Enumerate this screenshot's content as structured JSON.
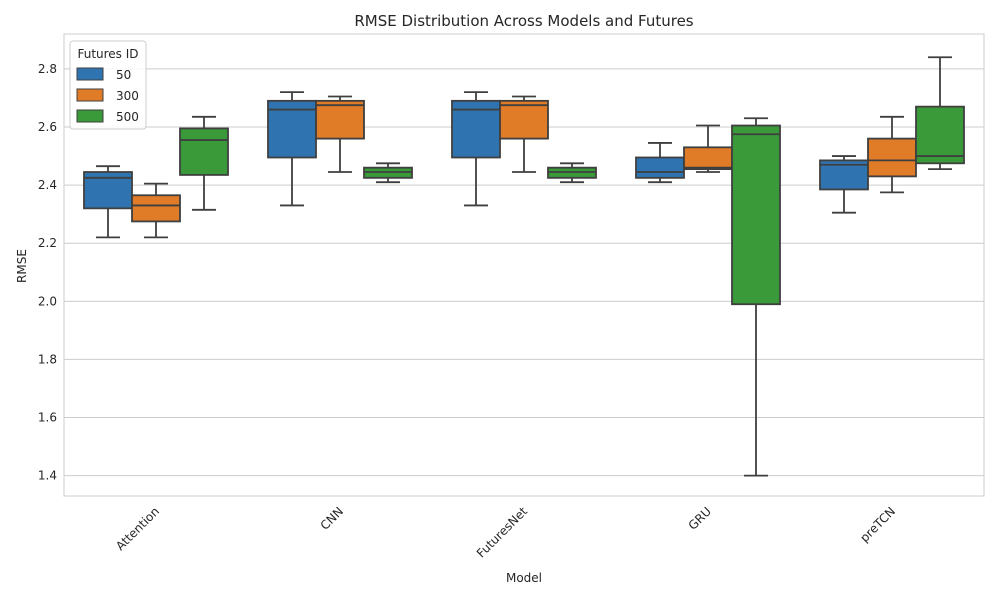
{
  "chart_data": {
    "type": "box",
    "title": "RMSE Distribution Across Models and Futures",
    "xlabel": "Model",
    "ylabel": "RMSE",
    "ylim": [
      1.33,
      2.92
    ],
    "yticks": [
      1.4,
      1.6,
      1.8,
      2.0,
      2.2,
      2.4,
      2.6,
      2.8
    ],
    "categories": [
      "Attention",
      "CNN",
      "FuturesNet",
      "GRU",
      "preTCN"
    ],
    "grid": true,
    "legend": {
      "title": "Futures ID",
      "placement": "top-left"
    },
    "series": [
      {
        "name": "50",
        "color": "#2f74b0",
        "boxes": [
          {
            "whisker_low": 2.22,
            "q1": 2.32,
            "median": 2.425,
            "q3": 2.445,
            "whisker_high": 2.465
          },
          {
            "whisker_low": 2.33,
            "q1": 2.495,
            "median": 2.66,
            "q3": 2.69,
            "whisker_high": 2.72
          },
          {
            "whisker_low": 2.33,
            "q1": 2.495,
            "median": 2.66,
            "q3": 2.69,
            "whisker_high": 2.72
          },
          {
            "whisker_low": 2.41,
            "q1": 2.425,
            "median": 2.445,
            "q3": 2.495,
            "whisker_high": 2.545
          },
          {
            "whisker_low": 2.305,
            "q1": 2.385,
            "median": 2.47,
            "q3": 2.485,
            "whisker_high": 2.5
          }
        ]
      },
      {
        "name": "300",
        "color": "#e07b28",
        "boxes": [
          {
            "whisker_low": 2.22,
            "q1": 2.275,
            "median": 2.33,
            "q3": 2.365,
            "whisker_high": 2.405
          },
          {
            "whisker_low": 2.445,
            "q1": 2.56,
            "median": 2.675,
            "q3": 2.69,
            "whisker_high": 2.705
          },
          {
            "whisker_low": 2.445,
            "q1": 2.56,
            "median": 2.675,
            "q3": 2.69,
            "whisker_high": 2.705
          },
          {
            "whisker_low": 2.445,
            "q1": 2.455,
            "median": 2.46,
            "q3": 2.53,
            "whisker_high": 2.605
          },
          {
            "whisker_low": 2.375,
            "q1": 2.43,
            "median": 2.485,
            "q3": 2.56,
            "whisker_high": 2.635
          }
        ]
      },
      {
        "name": "500",
        "color": "#3a9a3a",
        "boxes": [
          {
            "whisker_low": 2.315,
            "q1": 2.435,
            "median": 2.555,
            "q3": 2.595,
            "whisker_high": 2.635
          },
          {
            "whisker_low": 2.41,
            "q1": 2.425,
            "median": 2.445,
            "q3": 2.46,
            "whisker_high": 2.475
          },
          {
            "whisker_low": 2.41,
            "q1": 2.425,
            "median": 2.445,
            "q3": 2.46,
            "whisker_high": 2.475
          },
          {
            "whisker_low": 1.4,
            "q1": 1.99,
            "median": 2.575,
            "q3": 2.605,
            "whisker_high": 2.63
          },
          {
            "whisker_low": 2.455,
            "q1": 2.475,
            "median": 2.5,
            "q3": 2.67,
            "whisker_high": 2.84
          }
        ]
      }
    ]
  }
}
